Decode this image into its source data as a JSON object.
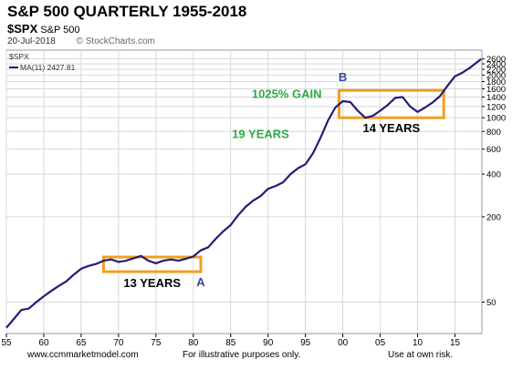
{
  "header": {
    "title": "S&P 500 QUARTERLY 1955-2018",
    "symbol": "$SPX",
    "symbol_desc": "S&P 500",
    "date": "20-Jul-2018",
    "source": "© StockCharts.com"
  },
  "footer": {
    "website": "www.ccmmarketmodel.com",
    "note": "For illustrative purposes only.",
    "risk": "Use at own risk."
  },
  "colors": {
    "line": "#1f1f7a",
    "box": "#f0a020",
    "gain_text": "#2eaa44",
    "label_ab": "#3344aa",
    "grid": "#d8d8d8",
    "axis": "#000000"
  },
  "chart_data": {
    "type": "line",
    "title": "S&P 500 QUARTERLY 1955-2018",
    "yscale": "log",
    "xlim": [
      1955,
      2018.6
    ],
    "ylim": [
      30,
      3000
    ],
    "x_ticks": [
      1955,
      1960,
      1965,
      1970,
      1975,
      1980,
      1985,
      1990,
      1995,
      2000,
      2005,
      2010,
      2015
    ],
    "x_tick_labels": [
      "55",
      "60",
      "65",
      "70",
      "75",
      "80",
      "85",
      "90",
      "95",
      "00",
      "05",
      "10",
      "15"
    ],
    "y_ticks": [
      50,
      200,
      400,
      600,
      800,
      1000,
      1200,
      1400,
      1600,
      1800,
      2000,
      2200,
      2400,
      2600
    ],
    "y_tick_labels": [
      "50",
      "200",
      "400",
      "600",
      "800",
      "1000",
      "1200",
      "1400",
      "1600",
      "1800",
      "2000",
      "2200",
      "2400",
      "2600"
    ],
    "legend": {
      "symbol": "$SPX",
      "entry": "MA(11) 2427.81",
      "position": "top-left"
    },
    "series": [
      {
        "name": "MA(11) 2427.81",
        "x": [
          1955,
          1956,
          1957,
          1958,
          1959,
          1960,
          1961,
          1962,
          1963,
          1964,
          1965,
          1966,
          1967,
          1968,
          1969,
          1970,
          1971,
          1972,
          1973,
          1974,
          1975,
          1976,
          1977,
          1978,
          1979,
          1980,
          1981,
          1982,
          1983,
          1984,
          1985,
          1986,
          1987,
          1988,
          1989,
          1990,
          1991,
          1992,
          1993,
          1994,
          1995,
          1996,
          1997,
          1998,
          1999,
          2000,
          2001,
          2002,
          2003,
          2004,
          2005,
          2006,
          2007,
          2008,
          2009,
          2010,
          2011,
          2012,
          2013,
          2014,
          2015,
          2016,
          2017,
          2018.5
        ],
        "y": [
          33,
          38,
          44,
          45,
          50,
          55,
          60,
          65,
          70,
          78,
          86,
          90,
          93,
          98,
          100,
          96,
          98,
          102,
          106,
          98,
          94,
          98,
          100,
          98,
          101,
          105,
          116,
          122,
          140,
          158,
          175,
          205,
          235,
          260,
          280,
          315,
          330,
          350,
          400,
          440,
          470,
          560,
          720,
          950,
          1180,
          1310,
          1290,
          1120,
          1000,
          1030,
          1120,
          1230,
          1380,
          1400,
          1200,
          1100,
          1180,
          1280,
          1420,
          1680,
          1960,
          2080,
          2250,
          2600
        ]
      }
    ],
    "annotations": [
      {
        "text": "13 YEARS",
        "kind": "range",
        "x": [
          1968,
          1981
        ],
        "y": [
          82,
          104
        ]
      },
      {
        "text": "14 YEARS",
        "kind": "range",
        "x": [
          1999.5,
          2013.5
        ],
        "y": [
          1000,
          1560
        ]
      },
      {
        "text": "A",
        "kind": "point",
        "x": 1981,
        "y": 104
      },
      {
        "text": "B",
        "kind": "point",
        "x": 2000,
        "y": 1560
      },
      {
        "text": "19 YEARS",
        "kind": "note",
        "x": 1989,
        "y": 720
      },
      {
        "text": "1025% GAIN",
        "kind": "note",
        "x": 1992.5,
        "y": 1380
      }
    ]
  }
}
